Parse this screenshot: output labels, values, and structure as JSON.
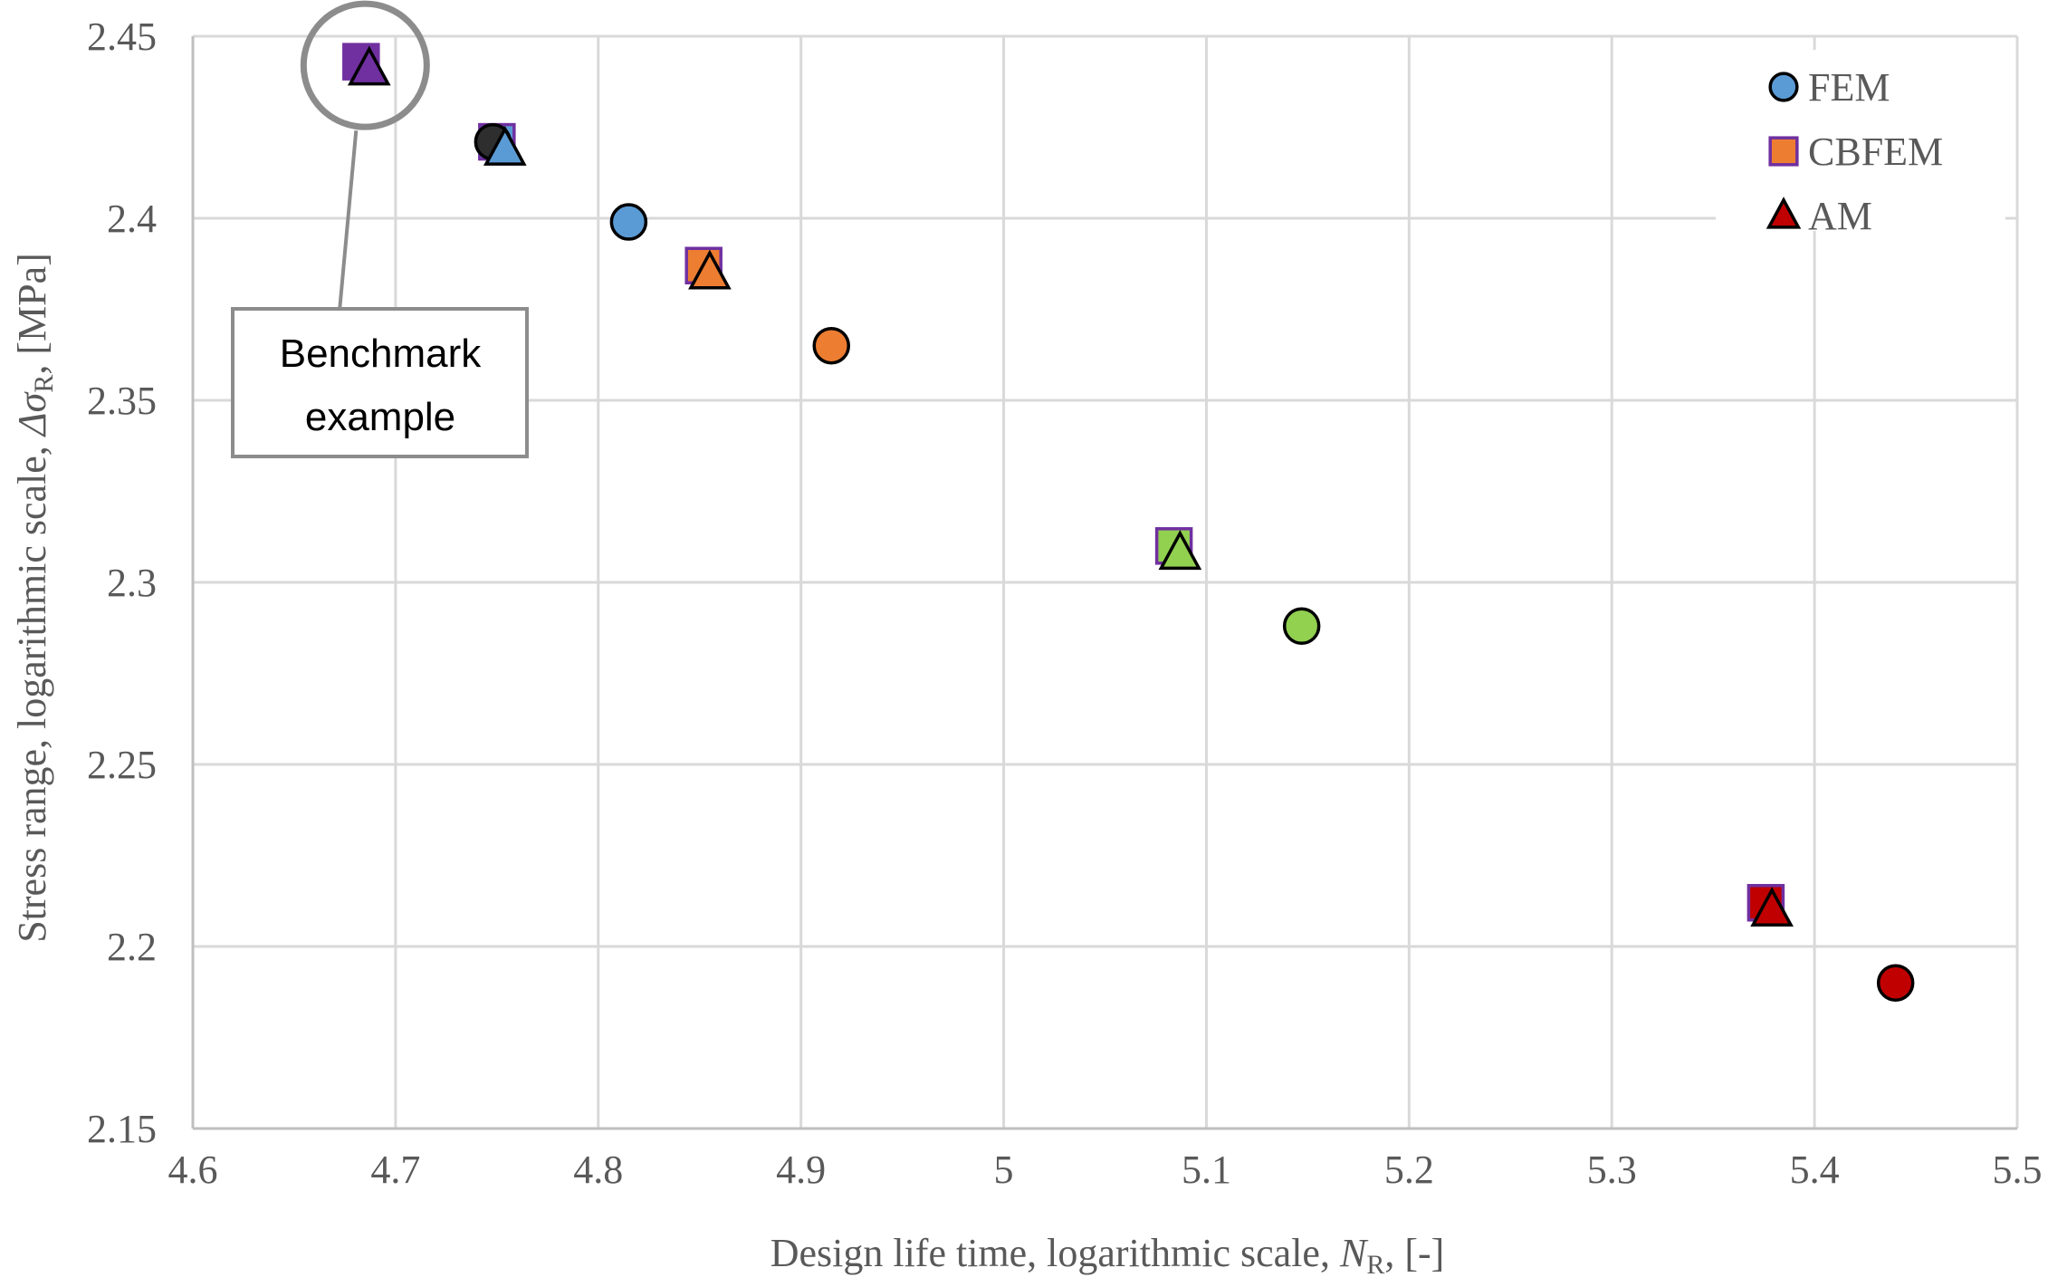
{
  "chart_data": {
    "type": "scatter",
    "title": "",
    "xlabel": {
      "prefix": "Design life time, logarithmic scale, ",
      "symbol": "N",
      "subscript": "R",
      "suffix": ", [-]"
    },
    "ylabel": {
      "prefix": "Stress range, logarithmic scale, ",
      "symbol": "Δσ",
      "subscript": "R",
      "suffix": ", [MPa]"
    },
    "xlim": [
      4.6,
      5.5
    ],
    "ylim": [
      2.15,
      2.45
    ],
    "xticks": [
      "4.6",
      "4.7",
      "4.8",
      "4.9",
      "5",
      "5.1",
      "5.2",
      "5.3",
      "5.4",
      "5.5"
    ],
    "yticks": [
      "2.15",
      "2.2",
      "2.25",
      "2.3",
      "2.35",
      "2.4",
      "2.45"
    ],
    "grid": true,
    "legend_position": "top-right",
    "legend": [
      {
        "label": "FEM",
        "marker": "circle",
        "fill": "#5b9bd5",
        "stroke": "#000000"
      },
      {
        "label": "CBFEM",
        "marker": "square",
        "fill": "#ed7d31",
        "stroke": "#7030a0"
      },
      {
        "label": "AM",
        "marker": "triangle",
        "fill": "#c00000",
        "stroke": "#000000"
      }
    ],
    "series": [
      {
        "name": "FEM",
        "marker": "circle",
        "points": [
          {
            "x": 4.748,
            "y": 2.421,
            "color": "#2e2e2e"
          },
          {
            "x": 4.815,
            "y": 2.399,
            "color": "#5b9bd5"
          },
          {
            "x": 4.915,
            "y": 2.365,
            "color": "#ed7d31"
          },
          {
            "x": 5.147,
            "y": 2.288,
            "color": "#92d050"
          },
          {
            "x": 5.44,
            "y": 2.19,
            "color": "#c00000"
          }
        ]
      },
      {
        "name": "CBFEM",
        "marker": "square",
        "points": [
          {
            "x": 4.683,
            "y": 2.443,
            "color": "#7030a0"
          },
          {
            "x": 4.75,
            "y": 2.421,
            "color": "#5b9bd5"
          },
          {
            "x": 4.852,
            "y": 2.387,
            "color": "#ed7d31"
          },
          {
            "x": 5.084,
            "y": 2.31,
            "color": "#92d050"
          },
          {
            "x": 5.376,
            "y": 2.212,
            "color": "#c00000"
          }
        ]
      },
      {
        "name": "AM",
        "marker": "triangle",
        "points": [
          {
            "x": 4.687,
            "y": 2.441,
            "color": "#7030a0"
          },
          {
            "x": 4.754,
            "y": 2.419,
            "color": "#5b9bd5"
          },
          {
            "x": 4.855,
            "y": 2.385,
            "color": "#ed7d31"
          },
          {
            "x": 5.087,
            "y": 2.308,
            "color": "#92d050"
          },
          {
            "x": 5.379,
            "y": 2.21,
            "color": "#c00000"
          }
        ]
      }
    ],
    "annotations": [
      {
        "text_lines": [
          "Benchmark",
          "example"
        ],
        "target": {
          "x": 4.685,
          "y": 2.442
        }
      }
    ]
  }
}
